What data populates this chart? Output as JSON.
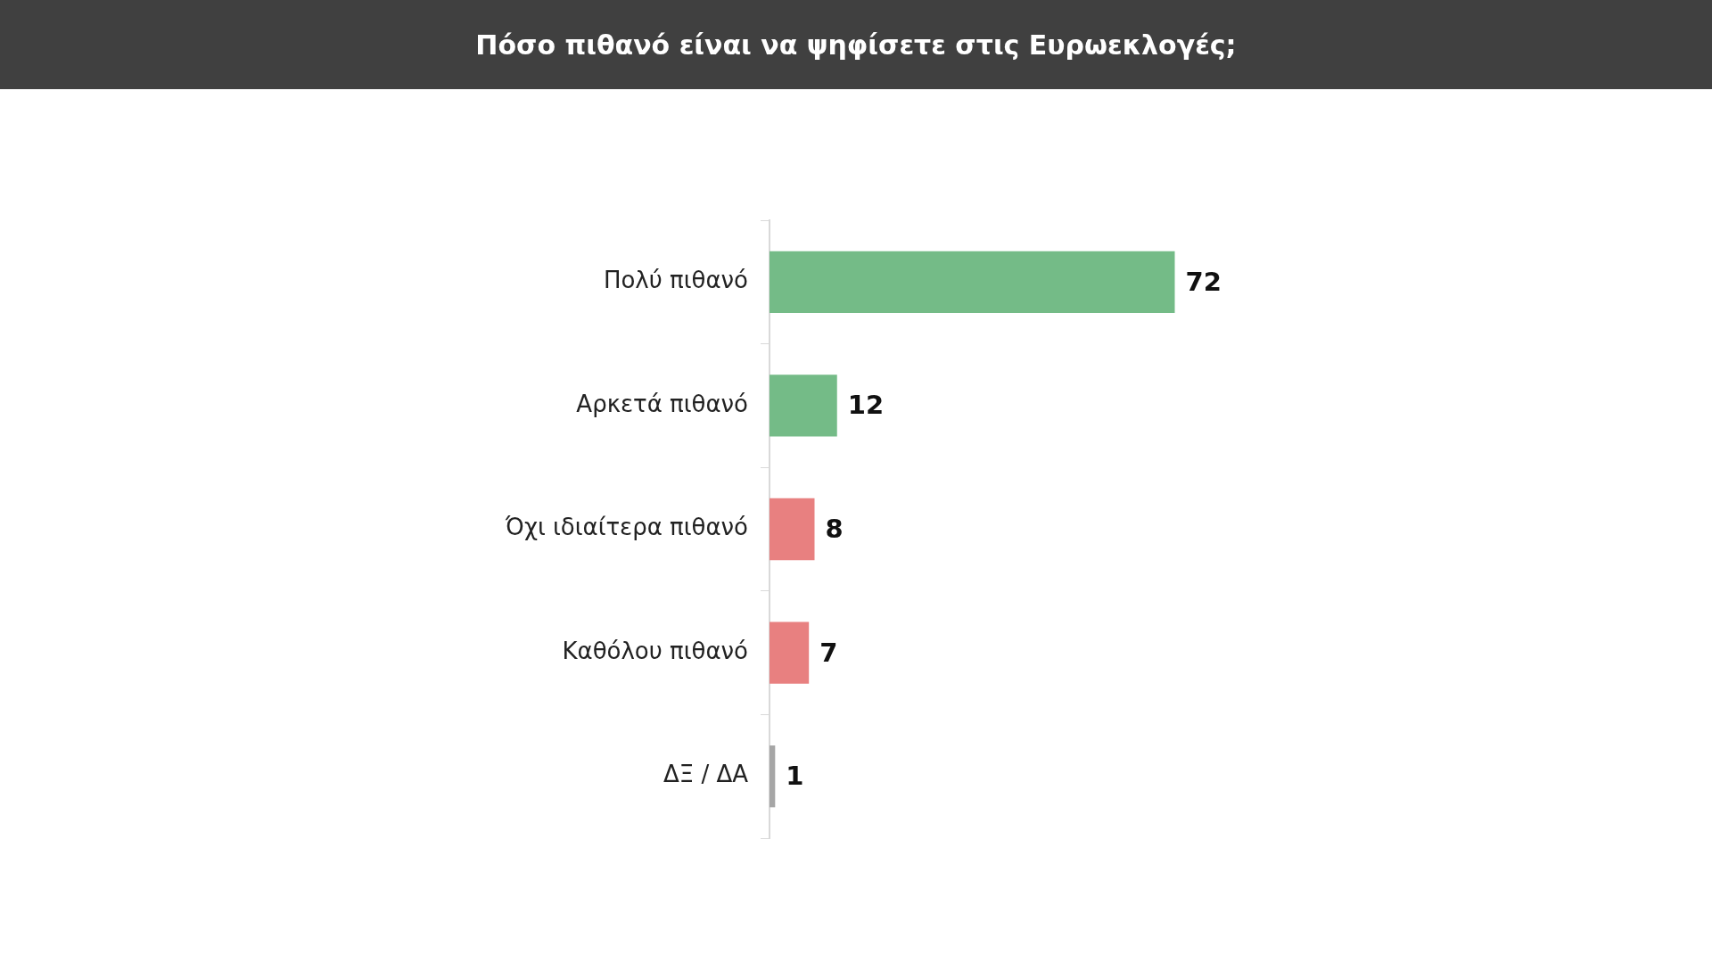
{
  "chart_data": {
    "type": "bar",
    "orientation": "horizontal",
    "title": "Πόσο πιθανό είναι να ψηφίσετε στις Ευρωεκλογές;",
    "categories": [
      "Πολύ πιθανό",
      "Αρκετά πιθανό",
      "Όχι ιδιαίτερα πιθανό",
      "Καθόλου πιθανό",
      "ΔΞ / ΔΑ"
    ],
    "values": [
      72,
      12,
      8,
      7,
      1
    ],
    "colors": [
      "#74bb87",
      "#74bb87",
      "#e88080",
      "#e88080",
      "#a6a6a6"
    ],
    "tick_labels": "y",
    "data_labels": true
  }
}
